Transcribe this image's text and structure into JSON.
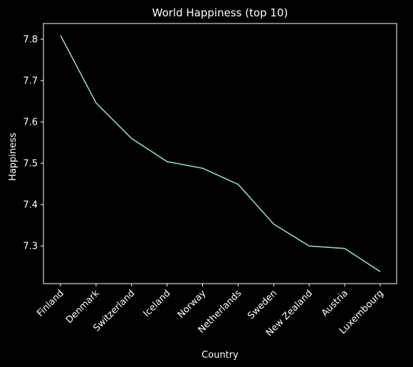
{
  "chart_data": {
    "type": "line",
    "title": "World Happiness (top 10)",
    "xlabel": "Country",
    "ylabel": "Happiness",
    "categories": [
      "Finland",
      "Denmark",
      "Switzerland",
      "Iceland",
      "Norway",
      "Netherlands",
      "Sweden",
      "New Zealand",
      "Austria",
      "Luxembourg"
    ],
    "values": [
      7.809,
      7.646,
      7.56,
      7.504,
      7.488,
      7.449,
      7.353,
      7.3,
      7.294,
      7.238
    ],
    "ylim": [
      7.209,
      7.838
    ],
    "yticks": [
      7.3,
      7.4,
      7.5,
      7.6,
      7.7,
      7.8
    ],
    "ytick_labels": [
      "7.3",
      "7.4",
      "7.5",
      "7.6",
      "7.7",
      "7.8"
    ],
    "grid": false,
    "colors": {
      "background": "#000000",
      "line": "#8dd3c7",
      "axes": "#ffffff",
      "text": "#ffffff"
    }
  }
}
